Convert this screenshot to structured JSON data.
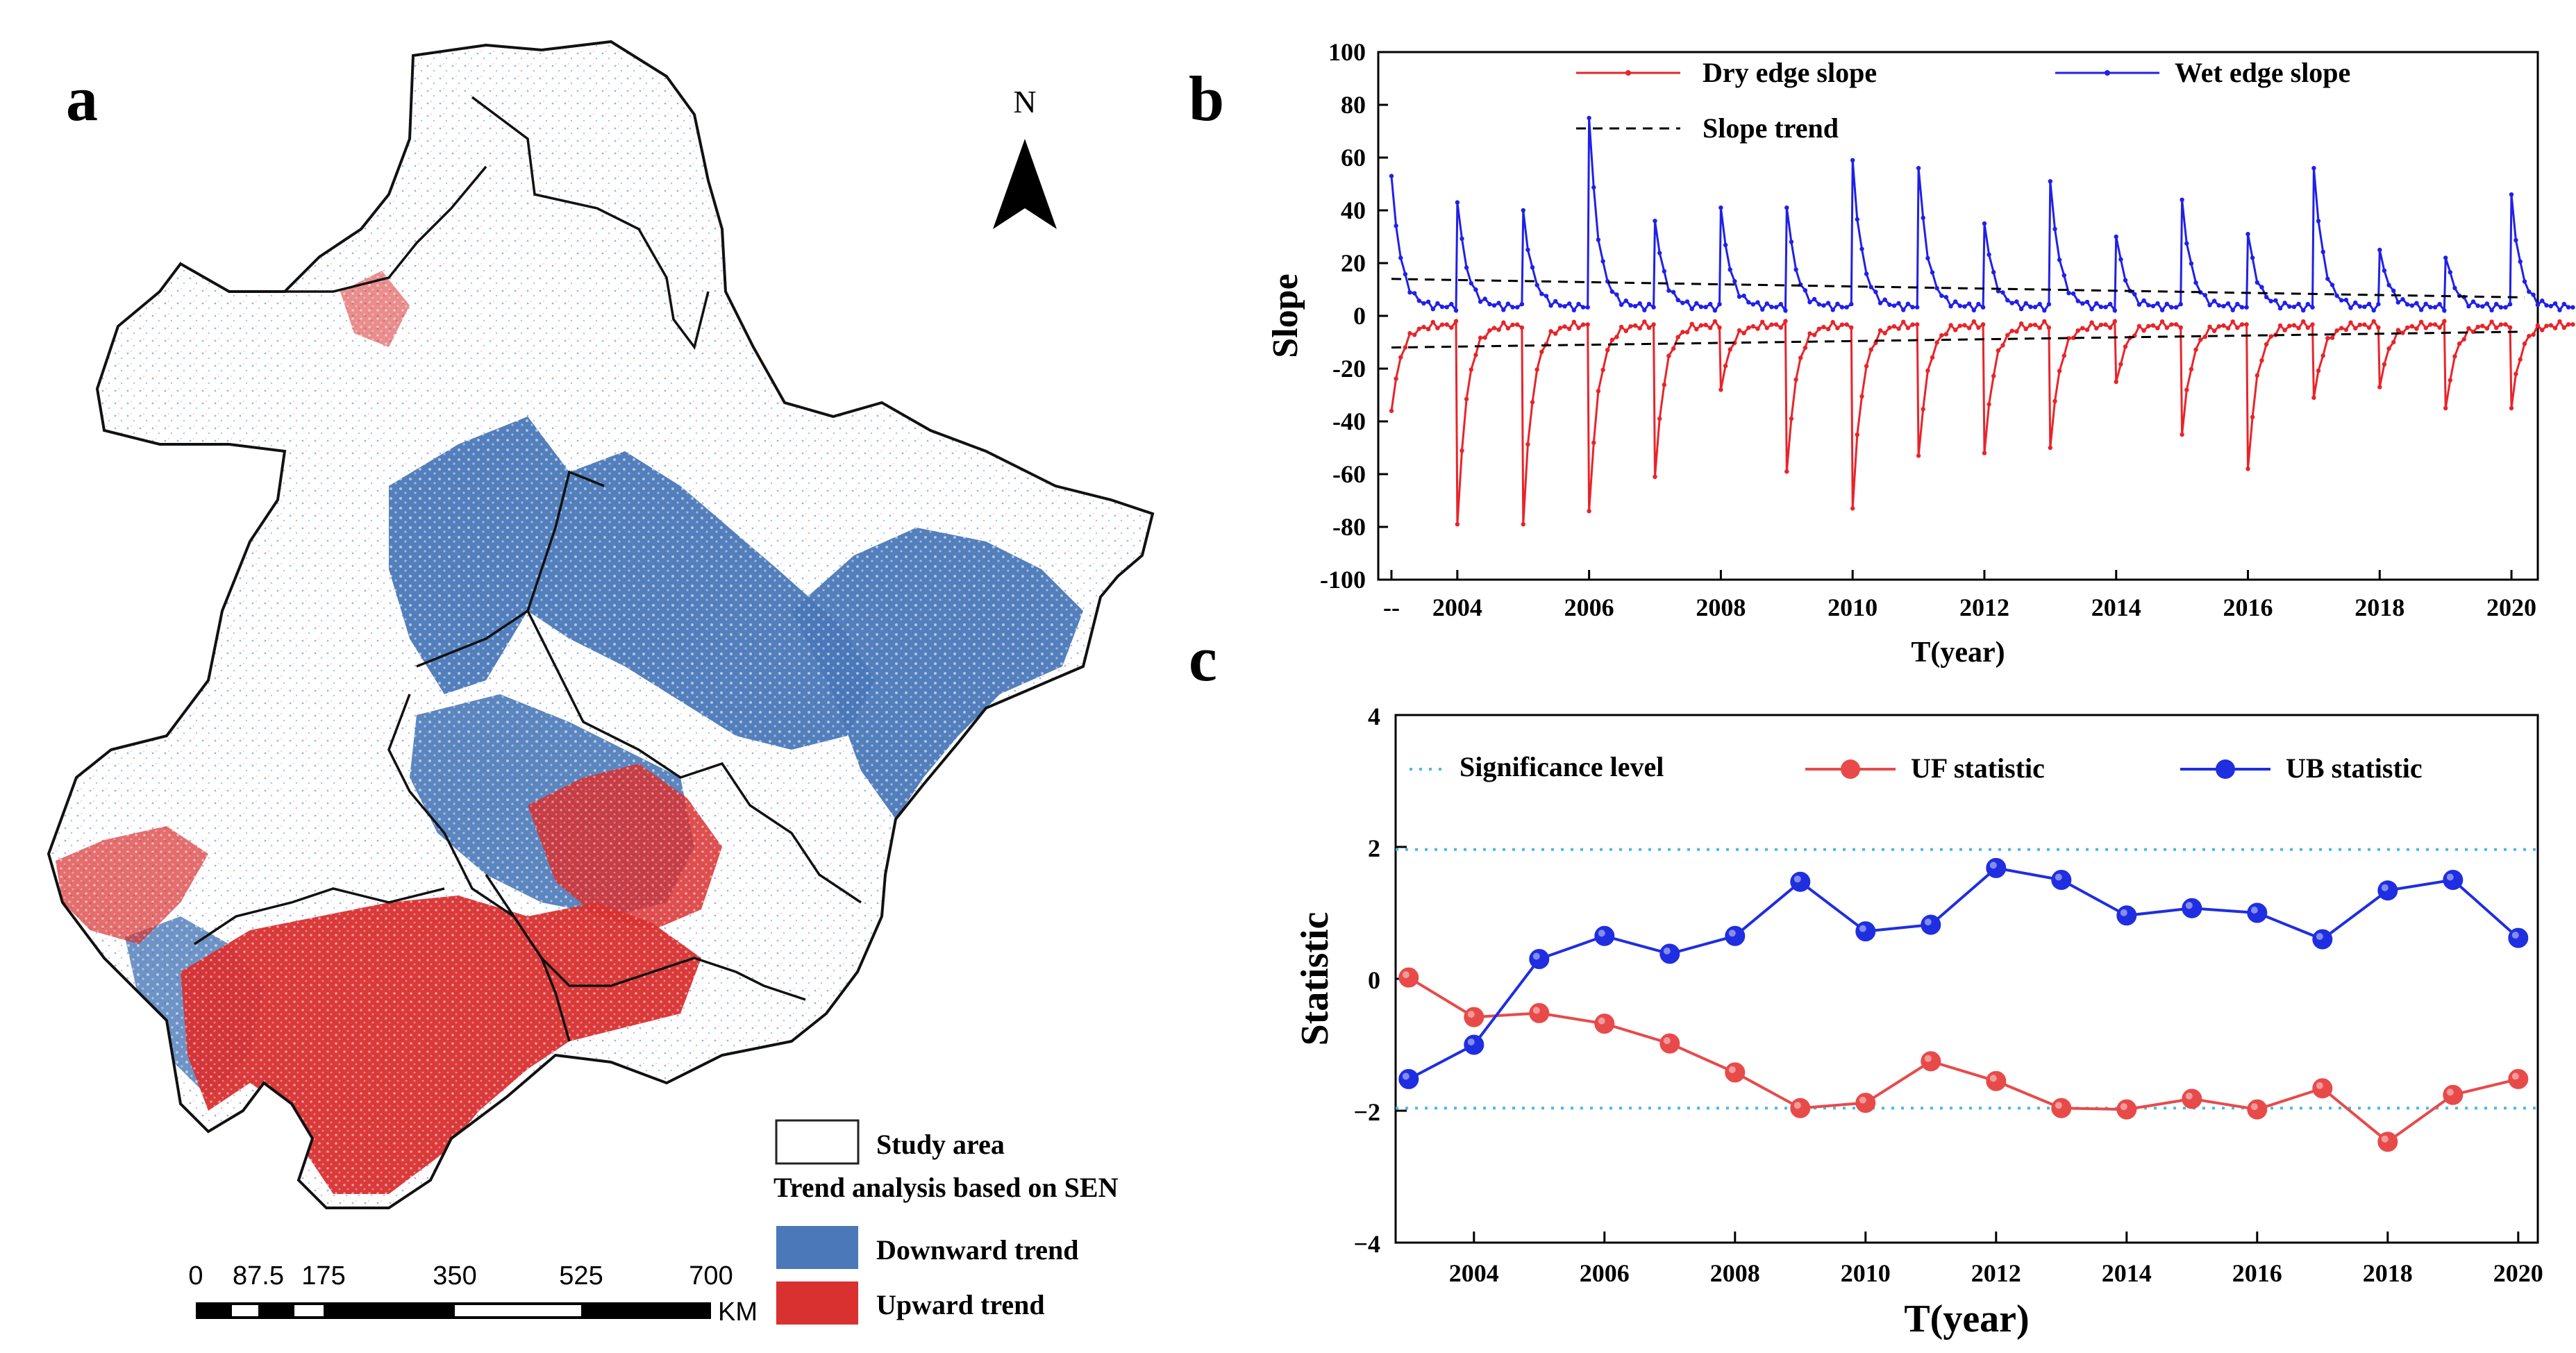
{
  "colors": {
    "downward": "#4a78b8",
    "upward": "#d93030",
    "dry": "#e8242a",
    "wet": "#2020e8",
    "trend": "#000000",
    "significance": "#49b8e8",
    "uf": "#e84a4a",
    "ub": "#1f2ee0"
  },
  "panel_a": {
    "label": "a",
    "north_label": "N",
    "legend": {
      "study_area": "Study area",
      "heading": "Trend analysis based on SEN",
      "downward": "Downward trend",
      "upward": "Upward trend"
    },
    "scale_labels": [
      "0",
      "87.5",
      "175",
      "350",
      "525",
      "700"
    ],
    "scale_unit": "KM"
  },
  "panel_b": {
    "label": "b"
  },
  "panel_c": {
    "label": "c"
  },
  "chart_data": [
    {
      "type": "line",
      "title": "",
      "xlabel": "T(year)",
      "ylabel": "Slope",
      "xlim": [
        2002.8,
        2020.4
      ],
      "ylim": [
        -100,
        100
      ],
      "yticks": [
        -100,
        -80,
        -60,
        -40,
        -20,
        0,
        20,
        40,
        60,
        80,
        100
      ],
      "xticks": [
        2003,
        2004,
        2006,
        2008,
        2010,
        2012,
        2014,
        2016,
        2018,
        2020
      ],
      "xtick_labels": [
        "--",
        "2004",
        "2006",
        "2008",
        "2010",
        "2012",
        "2014",
        "2016",
        "2018",
        "2020"
      ],
      "legend": {
        "dry": "Dry edge slope",
        "wet": "Wet edge slope",
        "trend": "Slope trend"
      },
      "series": [
        {
          "name": "Wet edge slope",
          "peaks": [
            {
              "x": 2003.0,
              "y": 53
            },
            {
              "x": 2004.0,
              "y": 43
            },
            {
              "x": 2005.0,
              "y": 40
            },
            {
              "x": 2006.0,
              "y": 75
            },
            {
              "x": 2007.0,
              "y": 36
            },
            {
              "x": 2008.0,
              "y": 41
            },
            {
              "x": 2009.0,
              "y": 41
            },
            {
              "x": 2010.0,
              "y": 59
            },
            {
              "x": 2011.0,
              "y": 56
            },
            {
              "x": 2012.0,
              "y": 35
            },
            {
              "x": 2013.0,
              "y": 51
            },
            {
              "x": 2014.0,
              "y": 30
            },
            {
              "x": 2015.0,
              "y": 44
            },
            {
              "x": 2016.0,
              "y": 31
            },
            {
              "x": 2017.0,
              "y": 56
            },
            {
              "x": 2018.0,
              "y": 25
            },
            {
              "x": 2019.0,
              "y": 22
            },
            {
              "x": 2020.0,
              "y": 46
            }
          ],
          "baseline": 2
        },
        {
          "name": "Dry edge slope",
          "troughs": [
            {
              "x": 2003.0,
              "y": -36
            },
            {
              "x": 2004.0,
              "y": -79
            },
            {
              "x": 2005.0,
              "y": -79
            },
            {
              "x": 2006.0,
              "y": -74
            },
            {
              "x": 2007.0,
              "y": -61
            },
            {
              "x": 2008.0,
              "y": -28
            },
            {
              "x": 2009.0,
              "y": -59
            },
            {
              "x": 2010.0,
              "y": -73
            },
            {
              "x": 2011.0,
              "y": -53
            },
            {
              "x": 2012.0,
              "y": -52
            },
            {
              "x": 2013.0,
              "y": -50
            },
            {
              "x": 2014.0,
              "y": -25
            },
            {
              "x": 2015.0,
              "y": -45
            },
            {
              "x": 2016.0,
              "y": -58
            },
            {
              "x": 2017.0,
              "y": -31
            },
            {
              "x": 2018.0,
              "y": -27
            },
            {
              "x": 2019.0,
              "y": -35
            },
            {
              "x": 2020.0,
              "y": -35
            }
          ],
          "baseline": -3
        },
        {
          "name": "Slope trend (wet)",
          "x": [
            2003,
            2020.2
          ],
          "y": [
            14,
            7
          ]
        },
        {
          "name": "Slope trend (dry)",
          "x": [
            2003,
            2020.2
          ],
          "y": [
            -12,
            -6
          ]
        }
      ]
    },
    {
      "type": "line",
      "title": "",
      "xlabel": "T(year)",
      "ylabel": "Statistic",
      "xlim": [
        2002.8,
        2020.3
      ],
      "ylim": [
        -4,
        4
      ],
      "yticks": [
        -4,
        -2,
        0,
        2,
        4
      ],
      "xticks": [
        2004,
        2006,
        2008,
        2010,
        2012,
        2014,
        2016,
        2018,
        2020
      ],
      "legend": {
        "sig": "Significance level",
        "uf": "UF statistic",
        "ub": "UB statistic"
      },
      "significance": [
        1.96,
        -1.96
      ],
      "x": [
        2003,
        2004,
        2005,
        2006,
        2007,
        2008,
        2009,
        2010,
        2011,
        2012,
        2013,
        2014,
        2015,
        2016,
        2017,
        2018,
        2019,
        2020
      ],
      "series": [
        {
          "name": "UF statistic",
          "values": [
            0.02,
            -0.58,
            -0.52,
            -0.68,
            -0.98,
            -1.42,
            -1.96,
            -1.88,
            -1.25,
            -1.55,
            -1.96,
            -1.98,
            -1.82,
            -1.98,
            -1.66,
            -2.47,
            -1.76,
            -1.52
          ]
        },
        {
          "name": "UB statistic",
          "values": [
            -1.52,
            -1.0,
            0.3,
            0.65,
            0.38,
            0.65,
            1.47,
            0.72,
            0.82,
            1.68,
            1.5,
            0.96,
            1.07,
            1.0,
            0.6,
            1.34,
            1.5,
            0.62
          ]
        }
      ]
    }
  ]
}
